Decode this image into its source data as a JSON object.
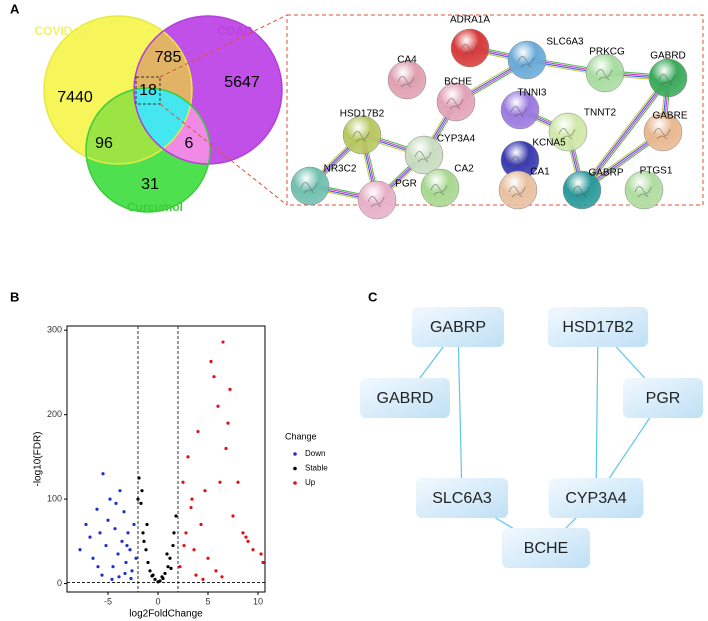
{
  "panel_labels": [
    "A",
    "B",
    "C"
  ],
  "venn": {
    "set_names": [
      "COVID-19",
      "COAD",
      "Curcumol"
    ],
    "counts": {
      "covid_only": 7440,
      "covid_coad": 785,
      "coad_only": 5647,
      "all_three": 18,
      "covid_curcumol": 96,
      "coad_curcumol": 6,
      "curcumol_only": 31
    }
  },
  "network": {
    "nodes": [
      {
        "label": "ADRA1A",
        "color": "#d83a3a"
      },
      {
        "label": "SLC6A3",
        "color": "#6aaad8"
      },
      {
        "label": "PRKCG",
        "color": "#a8dca0"
      },
      {
        "label": "GABRD",
        "color": "#3aaa5a"
      },
      {
        "label": "CA4",
        "color": "#e0a0b0"
      },
      {
        "label": "BCHE",
        "color": "#e2a2b8"
      },
      {
        "label": "TNNI3",
        "color": "#9a7ae0"
      },
      {
        "label": "HSD17B2",
        "color": "#b8c860"
      },
      {
        "label": "TNNT2",
        "color": "#d0e8a8"
      },
      {
        "label": "GABRE",
        "color": "#e8b890"
      },
      {
        "label": "CYP3A4",
        "color": "#c8dcc0"
      },
      {
        "label": "KCNA5",
        "color": "#3a3ab0"
      },
      {
        "label": "NR3C2",
        "color": "#70c0b0"
      },
      {
        "label": "PGR",
        "color": "#e8b0c8"
      },
      {
        "label": "GABRP",
        "color": "#2a9a9a"
      },
      {
        "label": "PTGS1",
        "color": "#b0dca0"
      },
      {
        "label": "CA2",
        "color": "#a8d890"
      },
      {
        "label": "CA1",
        "color": "#e8c0a0"
      }
    ]
  },
  "chart_data": {
    "type": "scatter",
    "xlabel": "log2FoldChange",
    "ylabel": "-log10(FDR)",
    "legend_title": "Change",
    "xlim": [
      -9.1,
      10.7
    ],
    "ylim": [
      -10,
      305
    ],
    "xticks": [
      -5,
      0,
      5,
      10
    ],
    "yticks": [
      0,
      100,
      200,
      300
    ],
    "vlines": [
      -2,
      2
    ],
    "hline": 1.3,
    "grid": false,
    "series": [
      {
        "name": "Down",
        "color": "#1f2fd0",
        "x": [
          -7.8,
          -7.2,
          -6.8,
          -6.5,
          -6.1,
          -5.8,
          -5.5,
          -5.2,
          -5.0,
          -4.8,
          -4.5,
          -4.3,
          -4.0,
          -3.8,
          -3.6,
          -3.4,
          -3.2,
          -3.0,
          -2.8,
          -2.6,
          -2.4,
          -2.2,
          -5.6,
          -4.6,
          -3.9,
          -3.3,
          -2.7,
          -4.2,
          -6.0,
          -3.1
        ],
        "values": [
          40,
          70,
          55,
          30,
          88,
          60,
          130,
          45,
          75,
          100,
          20,
          65,
          35,
          110,
          50,
          85,
          25,
          60,
          40,
          15,
          70,
          30,
          10,
          5,
          8,
          12,
          6,
          95,
          20,
          45
        ]
      },
      {
        "name": "Stable",
        "color": "#000000",
        "x": [
          -1.9,
          -1.7,
          -1.5,
          -1.2,
          -1.0,
          -0.8,
          -0.5,
          -0.3,
          0,
          0.2,
          0.4,
          0.7,
          1.0,
          1.2,
          1.5,
          1.8,
          -1.6,
          -1.1,
          0.9,
          1.6,
          -2.0,
          -1.4,
          0.5,
          1.3,
          -0.6
        ],
        "values": [
          125,
          95,
          60,
          40,
          25,
          15,
          10,
          5,
          2,
          3,
          8,
          12,
          20,
          30,
          45,
          80,
          110,
          70,
          35,
          60,
          100,
          50,
          6,
          18,
          9
        ]
      },
      {
        "name": "Up",
        "color": "#e01010",
        "x": [
          2.2,
          2.5,
          2.8,
          3.0,
          3.3,
          3.6,
          4.0,
          4.3,
          4.7,
          5.0,
          5.3,
          5.6,
          6.0,
          6.2,
          6.5,
          6.8,
          7.2,
          7.5,
          8.0,
          8.5,
          9.0,
          9.5,
          10.3,
          10.5,
          3.8,
          4.5,
          5.8,
          6.4,
          2.6,
          3.4,
          7.0,
          8.8
        ],
        "values": [
          20,
          120,
          60,
          150,
          90,
          40,
          180,
          70,
          110,
          30,
          263,
          245,
          210,
          120,
          286,
          160,
          230,
          80,
          120,
          60,
          50,
          40,
          35,
          25,
          10,
          5,
          15,
          8,
          45,
          100,
          190,
          55
        ]
      }
    ]
  },
  "hub_network": {
    "nodes": [
      "GABRP",
      "HSD17B2",
      "GABRD",
      "PGR",
      "SLC6A3",
      "CYP3A4",
      "BCHE"
    ]
  }
}
